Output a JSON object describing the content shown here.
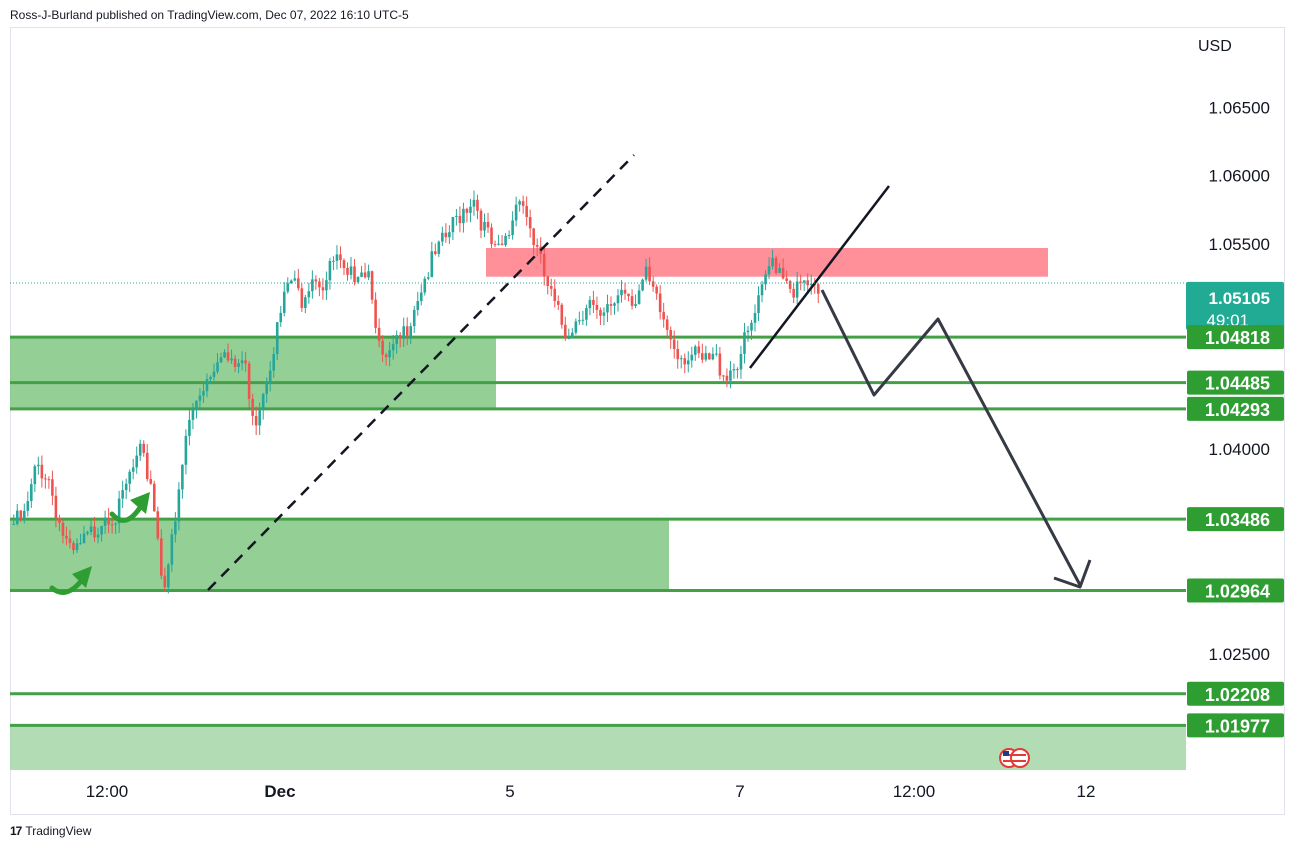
{
  "header": {
    "text": "Ross-J-Burland published on TradingView.com, Dec 07, 2022 16:10 UTC-5"
  },
  "footer": {
    "brand": "TradingView",
    "logo_glyph": "17"
  },
  "chart_data": {
    "type": "candlestick",
    "symbol_currency": "USD",
    "y_axis": {
      "currency_label": "USD",
      "ylim": [
        1.0165,
        1.0708
      ],
      "ticks": [
        "1.06500",
        "1.06000",
        "1.05500",
        "1.04000",
        "1.02500"
      ]
    },
    "x_axis": {
      "ticks": [
        "12:00",
        "Dec",
        "5",
        "7",
        "12:00",
        "12"
      ]
    },
    "last_price": {
      "value": "1.05105",
      "countdown": "49:01",
      "color": "#22ab94"
    },
    "levels": [
      {
        "label": "1.04818",
        "value": 1.04818
      },
      {
        "label": "1.04485",
        "value": 1.04485
      },
      {
        "label": "1.04293",
        "value": 1.04293
      },
      {
        "label": "1.03486",
        "value": 1.03486
      },
      {
        "label": "1.02964",
        "value": 1.02964
      },
      {
        "label": "1.02208",
        "value": 1.02208
      },
      {
        "label": "1.01977",
        "value": 1.01977
      }
    ],
    "zones": [
      {
        "kind": "support",
        "low": 1.04293,
        "high": 1.04818,
        "color": "#4caf50"
      },
      {
        "kind": "support",
        "low": 1.02964,
        "high": 1.03486,
        "color": "#4caf50"
      },
      {
        "kind": "support",
        "low": 1.0165,
        "high": 1.01977,
        "color": "#a5d6a7"
      },
      {
        "kind": "resistance",
        "low": 1.0526,
        "high": 1.0547,
        "color": "#ff7b87"
      }
    ],
    "colors": {
      "up": "#26a69a",
      "down": "#ef5350",
      "level": "#43a047",
      "zone": "#81c784",
      "projection": "#363a45"
    },
    "price_path": [
      1.0345,
      1.035,
      1.0388,
      1.038,
      1.0345,
      1.032,
      1.033,
      1.034,
      1.0355,
      1.035,
      1.0378,
      1.0395,
      1.0375,
      1.03,
      1.034,
      1.041,
      1.044,
      1.0455,
      1.0475,
      1.0458,
      1.0465,
      1.042,
      1.0455,
      1.049,
      1.0525,
      1.051,
      1.053,
      1.052,
      1.054,
      1.052,
      1.0535,
      1.053,
      1.046,
      1.047,
      1.0485,
      1.051,
      1.053,
      1.0545,
      1.056,
      1.0575,
      1.0585,
      1.056,
      1.054,
      1.0555,
      1.059,
      1.056,
      1.053,
      1.0505,
      1.0485,
      1.0495,
      1.051,
      1.049,
      1.0505,
      1.052,
      1.051,
      1.0525,
      1.0505,
      1.0485,
      1.047,
      1.0468,
      1.0462,
      1.0466,
      1.0455,
      1.0465,
      1.0485,
      1.051,
      1.054,
      1.053,
      1.0515,
      1.052,
      1.051
    ]
  }
}
